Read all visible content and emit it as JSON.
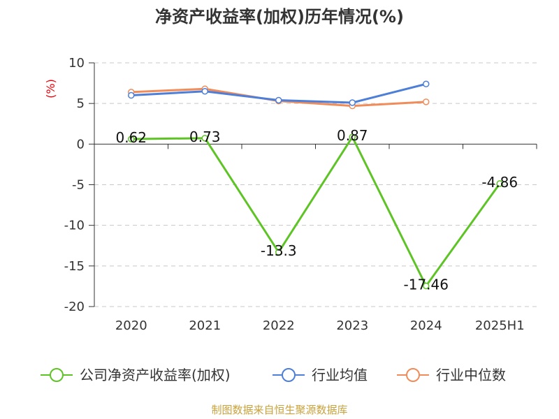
{
  "chart_data": {
    "type": "line",
    "title": "净资产收益率(加权)历年情况(%)",
    "ylabel": "(%)",
    "categories": [
      "2020",
      "2021",
      "2022",
      "2023",
      "2024",
      "2025H1"
    ],
    "yticks": [
      10,
      5,
      0,
      -5,
      -10,
      -15,
      -20
    ],
    "ylim": [
      -20,
      10
    ],
    "grid": true,
    "legend_position": "bottom",
    "series": [
      {
        "name": "公司净资产收益率(加权)",
        "color": "#5ec426",
        "values": [
          0.62,
          0.73,
          -13.3,
          0.87,
          -17.46,
          -4.86
        ],
        "labels": [
          "0.62",
          "0.73",
          "-13.3",
          "0.87",
          "-17.46",
          "-4.86"
        ]
      },
      {
        "name": "行业均值",
        "color": "#4e7fd8",
        "values": [
          6.0,
          6.5,
          5.4,
          5.1,
          7.4,
          null
        ]
      },
      {
        "name": "行业中位数",
        "color": "#f08c5a",
        "values": [
          6.4,
          6.8,
          5.3,
          4.7,
          5.2,
          null
        ]
      }
    ],
    "source": "制图数据来自恒生聚源数据库"
  }
}
